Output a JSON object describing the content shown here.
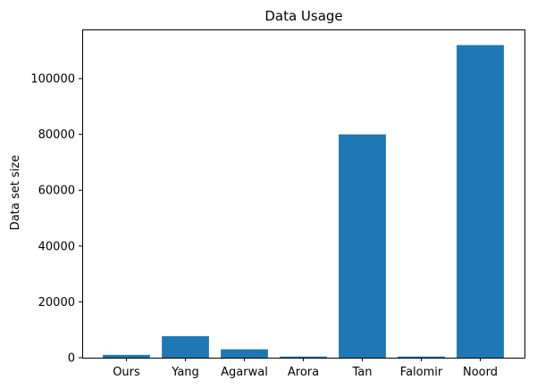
{
  "chart_data": {
    "type": "bar",
    "title": "Data Usage",
    "xlabel": "",
    "ylabel": "Data set size",
    "categories": [
      "Ours",
      "Yang",
      "Agarwal",
      "Arora",
      "Tan",
      "Falomir",
      "Noord"
    ],
    "values": [
      1000,
      7700,
      3000,
      400,
      80000,
      400,
      112000
    ],
    "ylim": [
      0,
      117600
    ],
    "yticks": [
      0,
      20000,
      40000,
      60000,
      80000,
      100000
    ],
    "grid": false,
    "legend": "none",
    "bar_color": "#1f77b4"
  }
}
